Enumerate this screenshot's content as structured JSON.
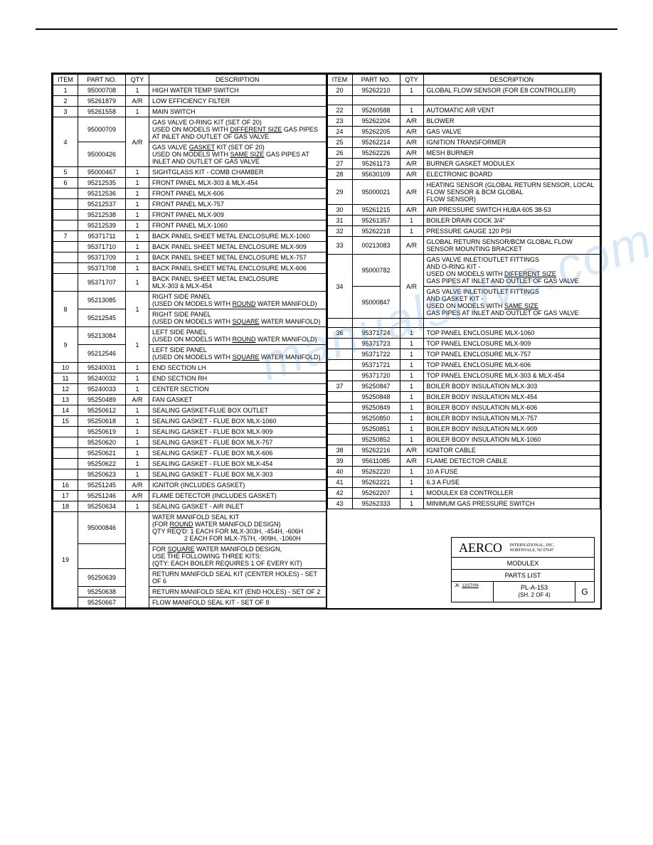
{
  "headers": {
    "item": "ITEM",
    "part": "PART NO.",
    "qty": "QTY",
    "desc": "DESCRIPTION"
  },
  "left": [
    {
      "i": "1",
      "p": "95000708",
      "q": "1",
      "d": "HIGH WATER TEMP SWITCH"
    },
    {
      "i": "2",
      "p": "95261879",
      "q": "A/R",
      "d": "LOW EFFICIENCY FILTER"
    },
    {
      "i": "3",
      "p": "95261558",
      "q": "1",
      "d": "MAIN SWITCH"
    },
    {
      "i": "4",
      "p": "95000709",
      "q": "A/R",
      "d": "GAS VALVE O-RING KIT (SET OF 20)<br>USED ON MODELS WITH <span class='u'>DIFFERENT SIZE</span> GAS PIPES AT INLET AND OUTLET OF GAS VALVE",
      "rs_i": 2,
      "rs_q": 2
    },
    {
      "p": "95000426",
      "d": "GAS VALVE <span class='u'>GASKET</span> KIT (SET OF 20)<br>USED ON MODELS WITH <span class='u'>SAME SIZE</span> GAS PIPES AT INLET AND OUTLET OF GAS VALVE"
    },
    {
      "i": "5",
      "p": "95000467",
      "q": "1",
      "d": "SIGHTGLASS KIT - COMB CHAMBER"
    },
    {
      "i": "6",
      "p": "95212535",
      "q": "1",
      "d": "FRONT PANEL MLX-303 & MLX-454"
    },
    {
      "i": "",
      "p": "95212536",
      "q": "1",
      "d": "FRONT PANEL MLX-606"
    },
    {
      "i": "",
      "p": "95212537",
      "q": "1",
      "d": "FRONT PANEL MLX-757"
    },
    {
      "i": "",
      "p": "95212538",
      "q": "1",
      "d": "FRONT PANEL MLX-909"
    },
    {
      "i": "",
      "p": "95212539",
      "q": "1",
      "d": "FRONT PANEL MLX-1060"
    },
    {
      "i": "7",
      "p": "95371711",
      "q": "1",
      "d": "BACK PANEL SHEET METAL ENCLOSURE MLX-1060"
    },
    {
      "i": "",
      "p": "95371710",
      "q": "1",
      "d": "BACK PANEL SHEET METAL ENCLOSURE MLX-909"
    },
    {
      "i": "",
      "p": "95371709",
      "q": "1",
      "d": "BACK PANEL SHEET METAL ENCLOSURE MLX-757"
    },
    {
      "i": "",
      "p": "95371708",
      "q": "1",
      "d": "BACK PANEL SHEET METAL ENCLOSURE MLX-606"
    },
    {
      "i": "",
      "p": "95371707",
      "q": "1",
      "d": "BACK PANEL SHEET METAL ENCLOSURE<br>MLX-303 & MLX-454"
    },
    {
      "i": "8",
      "p": "95213085",
      "q": "1",
      "d": "RIGHT SIDE PANEL<br>(USED ON MODELS WITH <span class='u'>ROUND</span> WATER MANIFOLD)",
      "rs_i": 2,
      "rs_q": 2
    },
    {
      "p": "95212545",
      "d": "RIGHT SIDE PANEL<br>(USED ON MODELS WITH <span class='u'>SQUARE</span> WATER MANIFOLD)"
    },
    {
      "i": "9",
      "p": "95213084",
      "q": "1",
      "d": "LEFT SIDE PANEL<br>(USED ON MODELS WITH <span class='u'>ROUND</span> WATER MANIFOLD)",
      "rs_i": 2,
      "rs_q": 2
    },
    {
      "p": "95212546",
      "d": "LEFT SIDE PANEL<br>(USED ON MODELS WITH <span class='u'>SQUARE</span> WATER MANIFOLD)"
    },
    {
      "i": "10",
      "p": "95240031",
      "q": "1",
      "d": "END SECTION LH"
    },
    {
      "i": "11",
      "p": "95240032",
      "q": "1",
      "d": "END SECTION RH"
    },
    {
      "i": "12",
      "p": "95240033",
      "q": "1",
      "d": "CENTER SECTION"
    },
    {
      "i": "13",
      "p": "95250489",
      "q": "A/R",
      "d": "FAN GASKET"
    },
    {
      "i": "14",
      "p": "95250612",
      "q": "1",
      "d": "SEALING GASKET-FLUE BOX OUTLET"
    },
    {
      "i": "15",
      "p": "95250618",
      "q": "1",
      "d": "SEALING GASKET - FLUE BOX MLX-1060"
    },
    {
      "i": "",
      "p": "95250619",
      "q": "1",
      "d": "SEALING GASKET - FLUE BOX MLX-909"
    },
    {
      "i": "",
      "p": "95250620",
      "q": "1",
      "d": "SEALING GASKET - FLUE BOX MLX-757"
    },
    {
      "i": "",
      "p": "95250621",
      "q": "1",
      "d": "SEALING GASKET - FLUE BOX MLX-606"
    },
    {
      "i": "",
      "p": "95250622",
      "q": "1",
      "d": "SEALING GASKET - FLUE BOX MLX-454"
    },
    {
      "i": "",
      "p": "95250623",
      "q": "1",
      "d": "SEALING GASKET - FLUE BOX MLX-303"
    },
    {
      "i": "16",
      "p": "95251245",
      "q": "A/R",
      "d": "IGNITOR (INCLUDES GASKET)"
    },
    {
      "i": "17",
      "p": "95251246",
      "q": "A/R",
      "d": "FLAME DETECTOR (INCLUDES GASKET)"
    },
    {
      "i": "18",
      "p": "95250634",
      "q": "1",
      "d": "SEALING GASKET - AIR INLET"
    },
    {
      "i": "19",
      "p": "95000846",
      "q": "",
      "d": "WATER MANIFOLD SEAL KIT<br>(FOR <span class='u'>ROUND</span> WATER MANIFOLD DESIGN)<br>QTY REQ'D: 1 EACH FOR MLX-303H, -454H, -606H<br>&nbsp;&nbsp;&nbsp;&nbsp;&nbsp;&nbsp;&nbsp;&nbsp;&nbsp;&nbsp;&nbsp;&nbsp;&nbsp;&nbsp;&nbsp;&nbsp;&nbsp;&nbsp;2 EACH FOR MLX-757H, -909H, -1060H",
      "rs_i": 5,
      "rs_q": 5
    },
    {
      "p": "",
      "d": "FOR <span class='u'>SQUARE</span> WATER MANIFOLD DESIGN,<br>USE THE FOLLOWING THREE KITS:<br>(QTY: EACH BOILER REQUIRES 1 OF EVERY KIT)"
    },
    {
      "p": "95250639",
      "d": "RETURN MANIFOLD SEAL KIT (CENTER HOLES) - SET OF 6"
    },
    {
      "p": "95250638",
      "d": "RETURN MANIFOLD SEAL KIT (END HOLES) - SET OF 2"
    },
    {
      "p": "95250667",
      "d": "FLOW MANIFOLD SEAL KIT - SET OF 8"
    }
  ],
  "right": [
    {
      "i": "20",
      "p": "95262210",
      "q": "1",
      "d": "GLOBAL FLOW SENSOR (FOR E8 CONTROLLER)"
    },
    {
      "spacer": true
    },
    {
      "i": "22",
      "p": "95260588",
      "q": "1",
      "d": "AUTOMATIC AIR VENT"
    },
    {
      "i": "23",
      "p": "95262204",
      "q": "A/R",
      "d": "BLOWER"
    },
    {
      "i": "24",
      "p": "95262205",
      "q": "A/R",
      "d": "GAS VALVE"
    },
    {
      "i": "25",
      "p": "95262214",
      "q": "A/R",
      "d": "IGNITION TRANSFORMER"
    },
    {
      "i": "26",
      "p": "95262226",
      "q": "A/R",
      "d": "MESH BURNER"
    },
    {
      "i": "27",
      "p": "95261173",
      "q": "A/R",
      "d": "BURNER GASKET MODULEX"
    },
    {
      "i": "28",
      "p": "95630109",
      "q": "A/R",
      "d": "ELECTRONIC BOARD"
    },
    {
      "i": "29",
      "p": "95000021",
      "q": "A/R",
      "d": "HEATING SENSOR (GLOBAL RETURN SENSOR, LOCAL FLOW SENSOR & BCM GLOBAL<br>FLOW SENSOR)"
    },
    {
      "i": "30",
      "p": "95261215",
      "q": "A/R",
      "d": "AIR PRESSURE SWITCH HUBA 605 38-53"
    },
    {
      "i": "31",
      "p": "95261357",
      "q": "1",
      "d": "BOILER DRAIN COCK 3/4\""
    },
    {
      "i": "32",
      "p": "95262218",
      "q": "1",
      "d": "PRESSURE GAUGE 120 PSI"
    },
    {
      "i": "33",
      "p": "00213083",
      "q": "A/R",
      "d": "GLOBAL RETURN SENSOR/BCM GLOBAL FLOW SENSOR MOUNTING BRACKET"
    },
    {
      "i": "34",
      "p": "95000782",
      "q": "A/R",
      "d": "GAS VALVE INLET/OUTLET FITTINGS<br>AND O-RING KIT -<br>USED ON MODELS WITH <span class='u'>DIFFERENT SIZE</span><br>GAS PIPES AT INLET AND OUTLET OF GAS VALVE",
      "rs_i": 2,
      "rs_q": 2
    },
    {
      "p": "95000847",
      "d": "GAS VALVE INLET/OUTLET FITTINGS<br>AND GASKET KIT -<br>USED ON MODELS WITH <span class='u'>SAME SIZE</span><br>GAS PIPES AT INLET AND OUTLET OF GAS VALVE"
    },
    {
      "spacer": true
    },
    {
      "i": "36",
      "p": "95371724",
      "q": "1",
      "d": "TOP PANEL ENCLOSURE MLX-1060"
    },
    {
      "i": "",
      "p": "95371723",
      "q": "1",
      "d": "TOP PANEL ENCLOSURE MLX-909"
    },
    {
      "i": "",
      "p": "95371722",
      "q": "1",
      "d": "TOP PANEL ENCLOSURE MLX-757"
    },
    {
      "i": "",
      "p": "95371721",
      "q": "1",
      "d": "TOP PANEL ENCLOSURE MLX-606"
    },
    {
      "i": "",
      "p": "95371720",
      "q": "1",
      "d": "TOP PANEL ENCLOSURE MLX-303 & MLX-454"
    },
    {
      "i": "37",
      "p": "95250847",
      "q": "1",
      "d": "BOILER BODY INSULATION MLX-303"
    },
    {
      "i": "",
      "p": "95250848",
      "q": "1",
      "d": "BOILER BODY INSULATION MLX-454"
    },
    {
      "i": "",
      "p": "95250849",
      "q": "1",
      "d": "BOILER BODY INSULATION MLX-606"
    },
    {
      "i": "",
      "p": "95250850",
      "q": "1",
      "d": "BOILER BODY INSULATION MLX-757"
    },
    {
      "i": "",
      "p": "95250851",
      "q": "1",
      "d": "BOILER BODY INSULATION MLX-909"
    },
    {
      "i": "",
      "p": "95250852",
      "q": "1",
      "d": "BOILER BODY INSULATION MLX-1060"
    },
    {
      "i": "38",
      "p": "95262216",
      "q": "A/R",
      "d": "IGNITOR CABLE"
    },
    {
      "i": "39",
      "p": "95611085",
      "q": "A/R",
      "d": "FLAME DETECTOR CABLE"
    },
    {
      "i": "40",
      "p": "95262220",
      "q": "1",
      "d": "10 A FUSE"
    },
    {
      "i": "41",
      "p": "95262221",
      "q": "1",
      "d": "6.3 A FUSE"
    },
    {
      "i": "42",
      "p": "95262207",
      "q": "1",
      "d": "MODULEX E8 CONTROLLER"
    },
    {
      "i": "43",
      "p": "95262333",
      "q": "1",
      "d": "MINIMUM GAS PRESSURE SWITCH"
    }
  ],
  "titleblock": {
    "company": "AERCO",
    "company_sub": "INTERNATIONAL, INC.\nNORTHVALE, NJ   07647",
    "title1": "MODULEX",
    "title2": "PARTS LIST",
    "dwg": "PL-A-153",
    "sheet": "(SH. 2 OF 4)",
    "rev": "G"
  },
  "watermark": "manualshive.com"
}
